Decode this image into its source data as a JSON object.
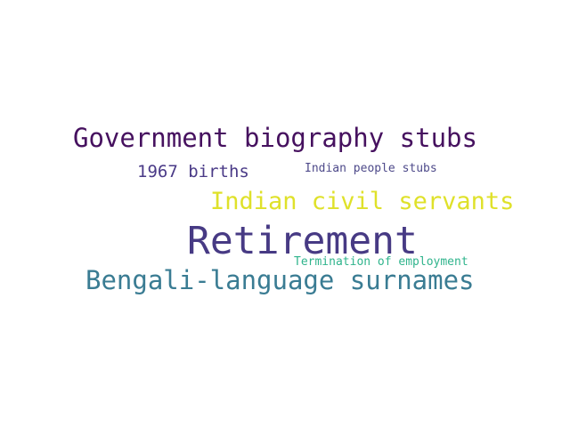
{
  "words": [
    {
      "text": "Government biography stubs",
      "color": "#46115f"
    },
    {
      "text": "1967 births",
      "color": "#4a3a87"
    },
    {
      "text": "Indian people stubs",
      "color": "#4e4a8a"
    },
    {
      "text": "Indian civil servants",
      "color": "#dfe12a"
    },
    {
      "text": "Retirement",
      "color": "#473a84"
    },
    {
      "text": "Termination of employment",
      "color": "#2fb48c"
    },
    {
      "text": "Bengali-language surnames",
      "color": "#3a7c93"
    }
  ]
}
